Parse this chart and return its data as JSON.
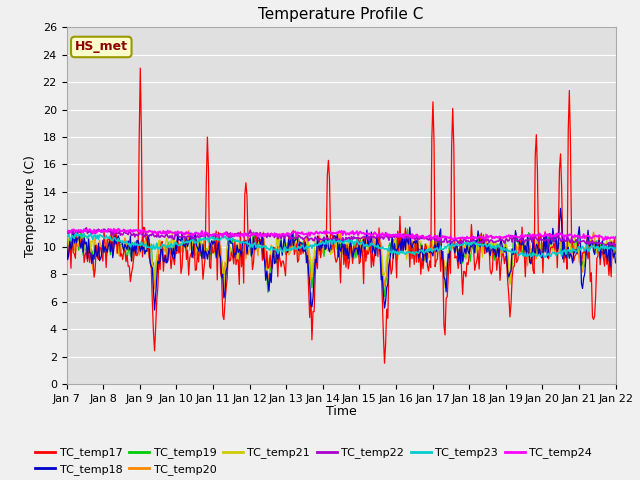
{
  "title": "Temperature Profile C",
  "xlabel": "Time",
  "ylabel": "Temperature (C)",
  "ylim": [
    0,
    26
  ],
  "annotation": "HS_met",
  "series_colors": {
    "TC_temp17": "#ff0000",
    "TC_temp18": "#0000cc",
    "TC_temp19": "#00cc00",
    "TC_temp20": "#ff8800",
    "TC_temp21": "#cccc00",
    "TC_temp22": "#aa00cc",
    "TC_temp23": "#00cccc",
    "TC_temp24": "#ff00ff"
  },
  "x_tick_labels": [
    "Jan 7",
    "Jan 8",
    "Jan 9",
    "Jan 10",
    "Jan 11",
    "Jan 12",
    "Jan 13",
    "Jan 14",
    "Jan 15",
    "Jan 16",
    "Jan 17",
    "Jan 18",
    "Jan 19",
    "Jan 20",
    "Jan 21",
    "Jan 22"
  ],
  "fig_facecolor": "#f0f0f0",
  "ax_facecolor": "#e0e0e0",
  "grid_color": "#ffffff",
  "title_fontsize": 11,
  "axis_fontsize": 9,
  "tick_fontsize": 8,
  "legend_fontsize": 8
}
